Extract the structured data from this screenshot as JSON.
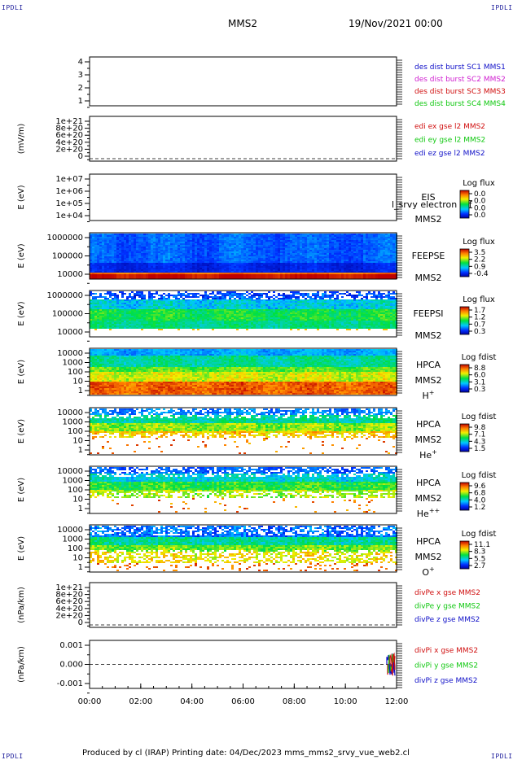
{
  "corner_label": "IPDLI",
  "header": {
    "spacecraft": "MMS2",
    "datetime": "19/Nov/2021 00:00"
  },
  "footer": {
    "text": "Produced by cl (IRAP)   Printing date: 04/Dec/2023   mms_mms2_srvy_vue_web2.cl"
  },
  "colors": {
    "blue": "#1010c8",
    "magenta": "#d020d0",
    "red": "#d01010",
    "green": "#10c810"
  },
  "chart_data": [
    {
      "id": "p1",
      "type": "line",
      "ylabel": "",
      "yticks": [
        "4",
        "3",
        "2",
        "1"
      ],
      "legend": [
        {
          "text": "des dist burst SC1 MMS1",
          "color": "blue"
        },
        {
          "text": "des dist burst SC2 MMS2",
          "color": "magenta"
        },
        {
          "text": "des dist burst SC3 MMS3",
          "color": "red"
        },
        {
          "text": "des dist burst SC4 MMS4",
          "color": "green"
        }
      ]
    },
    {
      "id": "p2",
      "type": "line",
      "ylabel": "(mV/m)",
      "yticks": [
        "1e+21",
        "8e+20",
        "6e+20",
        "4e+20",
        "2e+20",
        "0"
      ],
      "zero_line": true,
      "legend": [
        {
          "text": "edi ex gse l2 MMS2",
          "color": "red"
        },
        {
          "text": "edi ey gse l2 MMS2",
          "color": "green"
        },
        {
          "text": "edi ez gse l2 MMS2",
          "color": "blue"
        }
      ]
    },
    {
      "id": "p3",
      "type": "heatmap",
      "ylabel": "E (eV)",
      "yticks": [
        "1e+07",
        "1e+06",
        "1e+05",
        "1e+04"
      ],
      "fill": "none",
      "labels": [
        "EIS",
        "MMS2"
      ],
      "overlay_text": "l_srvy electron tof",
      "cbar_title": "Log flux",
      "cbar_ticks": [
        "0.0",
        "0.0",
        "0.0",
        "0.0"
      ]
    },
    {
      "id": "p4",
      "type": "heatmap",
      "ylabel": "E (eV)",
      "yticks": [
        "1000000",
        "100000",
        "10000"
      ],
      "fill": "feepse",
      "labels": [
        "FEEPSE",
        "MMS2"
      ],
      "cbar_title": "Log flux",
      "cbar_ticks": [
        "3.5",
        "2.2",
        "0.9",
        "-0.4"
      ]
    },
    {
      "id": "p5",
      "type": "heatmap",
      "ylabel": "E (eV)",
      "yticks": [
        "1000000",
        "100000",
        "10000"
      ],
      "fill": "feepsi",
      "labels": [
        "FEEPSI",
        "MMS2"
      ],
      "cbar_title": "Log flux",
      "cbar_ticks": [
        "1.7",
        "1.2",
        "0.7",
        "0.3"
      ]
    },
    {
      "id": "p6",
      "type": "heatmap",
      "ylabel": "E (eV)",
      "yticks": [
        "10000",
        "1000",
        "100",
        "10",
        "1"
      ],
      "fill": "hplus",
      "labels": [
        "HPCA",
        "MMS2"
      ],
      "species": "H",
      "charge": "+",
      "cbar_title": "Log fdist",
      "cbar_ticks": [
        "8.8",
        "6.0",
        "3.1",
        "0.3"
      ]
    },
    {
      "id": "p7",
      "type": "heatmap",
      "ylabel": "E (eV)",
      "yticks": [
        "10000",
        "1000",
        "100",
        "10",
        "1"
      ],
      "fill": "heplus",
      "labels": [
        "HPCA",
        "MMS2"
      ],
      "species": "He",
      "charge": "+",
      "cbar_title": "Log fdist",
      "cbar_ticks": [
        "9.8",
        "7.1",
        "4.3",
        "1.5"
      ]
    },
    {
      "id": "p8",
      "type": "heatmap",
      "ylabel": "E (eV)",
      "yticks": [
        "10000",
        "1000",
        "100",
        "10",
        "1"
      ],
      "fill": "hepp",
      "labels": [
        "HPCA",
        "MMS2"
      ],
      "species": "He",
      "charge": "++",
      "cbar_title": "Log fdist",
      "cbar_ticks": [
        "9.6",
        "6.8",
        "4.0",
        "1.2"
      ]
    },
    {
      "id": "p9",
      "type": "heatmap",
      "ylabel": "E (eV)",
      "yticks": [
        "10000",
        "1000",
        "100",
        "10",
        "1"
      ],
      "fill": "oplus",
      "labels": [
        "HPCA",
        "MMS2"
      ],
      "species": "O",
      "charge": "+",
      "cbar_title": "Log fdist",
      "cbar_ticks": [
        "11.1",
        "8.3",
        "5.5",
        "2.7"
      ]
    },
    {
      "id": "p10",
      "type": "line",
      "ylabel": "(nPa/km)",
      "yticks": [
        "1e+21",
        "8e+20",
        "6e+20",
        "4e+20",
        "2e+20",
        "0"
      ],
      "zero_line": true,
      "legend": [
        {
          "text": "divPe x gse MMS2",
          "color": "red"
        },
        {
          "text": "divPe y gse MMS2",
          "color": "green"
        },
        {
          "text": "divPe z gse MMS2",
          "color": "blue"
        }
      ]
    },
    {
      "id": "p11",
      "type": "line",
      "ylabel": "(nPa/km)",
      "yticks": [
        "0.001",
        "0.000",
        "-0.001"
      ],
      "zero_line": true,
      "burst_at_end": true,
      "legend": [
        {
          "text": "divPi x gse MMS2",
          "color": "red"
        },
        {
          "text": "divPi y gse MMS2",
          "color": "green"
        },
        {
          "text": "divPi z gse MMS2",
          "color": "blue"
        }
      ]
    }
  ],
  "xaxis": {
    "ticks": [
      "00:00",
      "02:00",
      "04:00",
      "06:00",
      "08:00",
      "10:00",
      "12:00"
    ]
  }
}
